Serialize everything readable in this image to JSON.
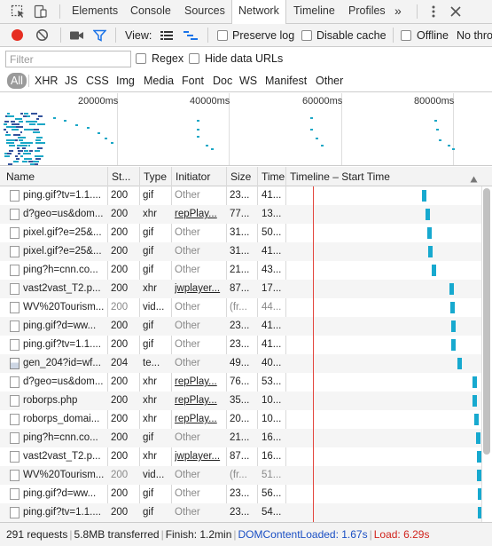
{
  "tabs": [
    "Elements",
    "Console",
    "Sources",
    "Network",
    "Timeline",
    "Profiles"
  ],
  "more_tabs": "»",
  "toolbar": {
    "view_label": "View:",
    "preserve_log": "Preserve log",
    "disable_cache": "Disable cache",
    "offline": "Offline",
    "throttle": "No thro"
  },
  "filter": {
    "placeholder": "Filter",
    "regex": "Regex",
    "hide_data_urls": "Hide data URLs"
  },
  "types": [
    "All",
    "XHR",
    "JS",
    "CSS",
    "Img",
    "Media",
    "Font",
    "Doc",
    "WS",
    "Manifest",
    "Other"
  ],
  "overview": {
    "ticks": [
      "20000ms",
      "40000ms",
      "60000ms",
      "80000ms"
    ]
  },
  "table": {
    "headers": [
      "Name",
      "St...",
      "Type",
      "Initiator",
      "Size",
      "Time",
      "Timeline – Start Time"
    ],
    "sort_icon": "sort-up-icon",
    "rows": [
      {
        "name": "ping.gif?tv=1.1....",
        "status": "200",
        "type": "gif",
        "initiator": "Other",
        "size": "23...",
        "time": "41...",
        "bar": 0.68
      },
      {
        "name": "d?geo=us&dom...",
        "status": "200",
        "type": "xhr",
        "initiator": "repPlay...",
        "size": "77...",
        "time": "13...",
        "bar": 0.7
      },
      {
        "name": "pixel.gif?e=25&...",
        "status": "200",
        "type": "gif",
        "initiator": "Other",
        "size": "31...",
        "time": "50...",
        "bar": 0.705
      },
      {
        "name": "pixel.gif?e=25&...",
        "status": "200",
        "type": "gif",
        "initiator": "Other",
        "size": "31...",
        "time": "41...",
        "bar": 0.71
      },
      {
        "name": "ping?h=cnn.co...",
        "status": "200",
        "type": "gif",
        "initiator": "Other",
        "size": "21...",
        "time": "43...",
        "bar": 0.73
      },
      {
        "name": "vast2vast_T2.p...",
        "status": "200",
        "type": "xhr",
        "initiator": "jwplayer...",
        "size": "87...",
        "time": "17...",
        "bar": 0.82
      },
      {
        "name": "WV%20Tourism...",
        "status": "200",
        "type": "vid...",
        "initiator": "Other",
        "size": "(fr...",
        "time": "44...",
        "bar": 0.825
      },
      {
        "name": "ping.gif?d=ww...",
        "status": "200",
        "type": "gif",
        "initiator": "Other",
        "size": "23...",
        "time": "41...",
        "bar": 0.827
      },
      {
        "name": "ping.gif?tv=1.1....",
        "status": "200",
        "type": "gif",
        "initiator": "Other",
        "size": "23...",
        "time": "41...",
        "bar": 0.83
      },
      {
        "name": "gen_204?id=wf...",
        "status": "204",
        "type": "te...",
        "initiator": "Other",
        "size": "49...",
        "time": "40...",
        "bar": 0.86
      },
      {
        "name": "d?geo=us&dom...",
        "status": "200",
        "type": "xhr",
        "initiator": "repPlay...",
        "size": "76...",
        "time": "53...",
        "bar": 0.935
      },
      {
        "name": "roborps.php",
        "status": "200",
        "type": "xhr",
        "initiator": "repPlay...",
        "size": "35...",
        "time": "10...",
        "bar": 0.935
      },
      {
        "name": "roborps_domai...",
        "status": "200",
        "type": "xhr",
        "initiator": "repPlay...",
        "size": "20...",
        "time": "10...",
        "bar": 0.945
      },
      {
        "name": "ping?h=cnn.co...",
        "status": "200",
        "type": "gif",
        "initiator": "Other",
        "size": "21...",
        "time": "16...",
        "bar": 0.955
      },
      {
        "name": "vast2vast_T2.p...",
        "status": "200",
        "type": "xhr",
        "initiator": "jwplayer...",
        "size": "87...",
        "time": "16...",
        "bar": 0.96
      },
      {
        "name": "WV%20Tourism...",
        "status": "200",
        "type": "vid...",
        "initiator": "Other",
        "size": "(fr...",
        "time": "51...",
        "bar": 0.96
      },
      {
        "name": "ping.gif?d=ww...",
        "status": "200",
        "type": "gif",
        "initiator": "Other",
        "size": "23...",
        "time": "56...",
        "bar": 0.962
      },
      {
        "name": "ping.gif?tv=1.1....",
        "status": "200",
        "type": "gif",
        "initiator": "Other",
        "size": "23...",
        "time": "54...",
        "bar": 0.965
      }
    ]
  },
  "status": {
    "requests": "291 requests",
    "transferred": "5.8MB transferred",
    "finish": "Finish: 1.2min",
    "dcl": "DOMContentLoaded: 1.67s",
    "load": "Load: 6.29s"
  },
  "colors": {
    "record": "#e62e22",
    "filter_icon": "#1a73e8",
    "dcl": "#1a4fc4",
    "load": "#d1241d",
    "waterfall": "#17a9cf"
  }
}
